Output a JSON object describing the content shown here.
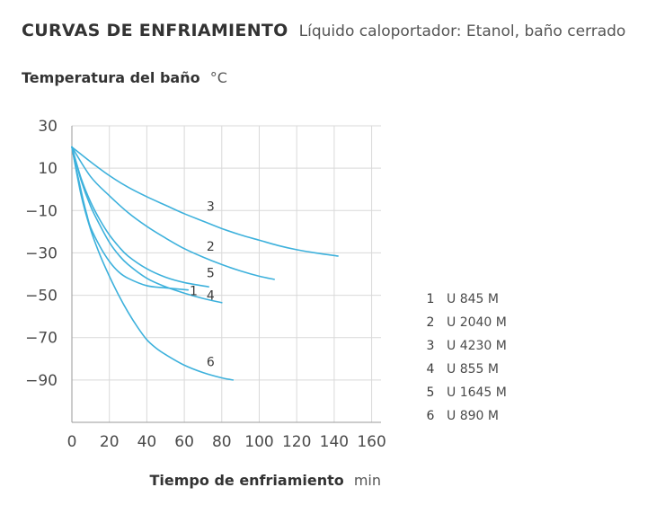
{
  "chart_data": {
    "type": "line",
    "title": "CURVAS DE ENFRIAMIENTO",
    "subtitle": "Líquido caloportador: Etanol, baño cerrado",
    "ylabel": "Temperatura del baño",
    "yunit": "°C",
    "xlabel": "Tiempo de enfriamiento",
    "xunit": "min",
    "xlim": [
      0,
      165
    ],
    "ylim": [
      -110,
      30
    ],
    "xticks": [
      0,
      20,
      40,
      60,
      80,
      100,
      120,
      140,
      160
    ],
    "yticks": [
      30,
      10,
      -10,
      -30,
      -50,
      -70,
      -90
    ],
    "ytick_labels": [
      "30",
      "10",
      "−10",
      "−30",
      "−50",
      "−70",
      "−90"
    ],
    "grid": true,
    "line_color": "#3db1dc",
    "legend_position": "right",
    "series": [
      {
        "id": "1",
        "name": "U 845 M",
        "x": [
          0,
          2,
          4,
          6,
          8,
          10,
          15,
          20,
          25,
          30,
          40,
          50,
          62
        ],
        "y": [
          20,
          11,
          3,
          -5,
          -12,
          -18,
          -27,
          -34,
          -39,
          -42,
          -45.5,
          -46.5,
          -47.5
        ]
      },
      {
        "id": "2",
        "name": "U 2040 M",
        "x": [
          0,
          10,
          20,
          30,
          40,
          50,
          60,
          70,
          80,
          90,
          100,
          108
        ],
        "y": [
          20,
          6,
          -3,
          -11,
          -17.5,
          -23,
          -28,
          -32,
          -35.5,
          -38.5,
          -41,
          -42.5
        ]
      },
      {
        "id": "3",
        "name": "U 4230 M",
        "x": [
          0,
          10,
          20,
          30,
          40,
          50,
          60,
          70,
          80,
          90,
          100,
          110,
          120,
          130,
          142
        ],
        "y": [
          20,
          13,
          6.5,
          1,
          -3.5,
          -7.5,
          -11.5,
          -15,
          -18.5,
          -21.5,
          -24,
          -26.5,
          -28.5,
          -30,
          -31.5
        ]
      },
      {
        "id": "4",
        "name": "U 855 M",
        "x": [
          0,
          5,
          10,
          15,
          20,
          25,
          30,
          40,
          50,
          60,
          70,
          80
        ],
        "y": [
          20,
          4,
          -8,
          -17,
          -25,
          -31,
          -35.5,
          -42,
          -46,
          -49,
          -51.5,
          -53.5
        ]
      },
      {
        "id": "5",
        "name": "U 1645 M",
        "x": [
          0,
          5,
          10,
          15,
          20,
          25,
          30,
          40,
          50,
          60,
          73
        ],
        "y": [
          20,
          5,
          -6,
          -14.5,
          -21.5,
          -27,
          -31.5,
          -37.5,
          -41.5,
          -44,
          -46
        ]
      },
      {
        "id": "6",
        "name": "U 890 M",
        "x": [
          0,
          5,
          10,
          15,
          20,
          25,
          30,
          35,
          40,
          45,
          50,
          60,
          70,
          80,
          86
        ],
        "y": [
          20,
          -3,
          -19,
          -31,
          -41,
          -50,
          -58,
          -65,
          -71,
          -75,
          -78,
          -83,
          -86.5,
          -89,
          -90
        ]
      }
    ],
    "annotations": [
      {
        "text": "3",
        "x": 74,
        "y": -10
      },
      {
        "text": "2",
        "x": 74,
        "y": -29
      },
      {
        "text": "5",
        "x": 74,
        "y": -41.5
      },
      {
        "text": "1",
        "x": 65,
        "y": -50
      },
      {
        "text": "4",
        "x": 74,
        "y": -52
      },
      {
        "text": "6",
        "x": 74,
        "y": -83.5
      }
    ]
  }
}
